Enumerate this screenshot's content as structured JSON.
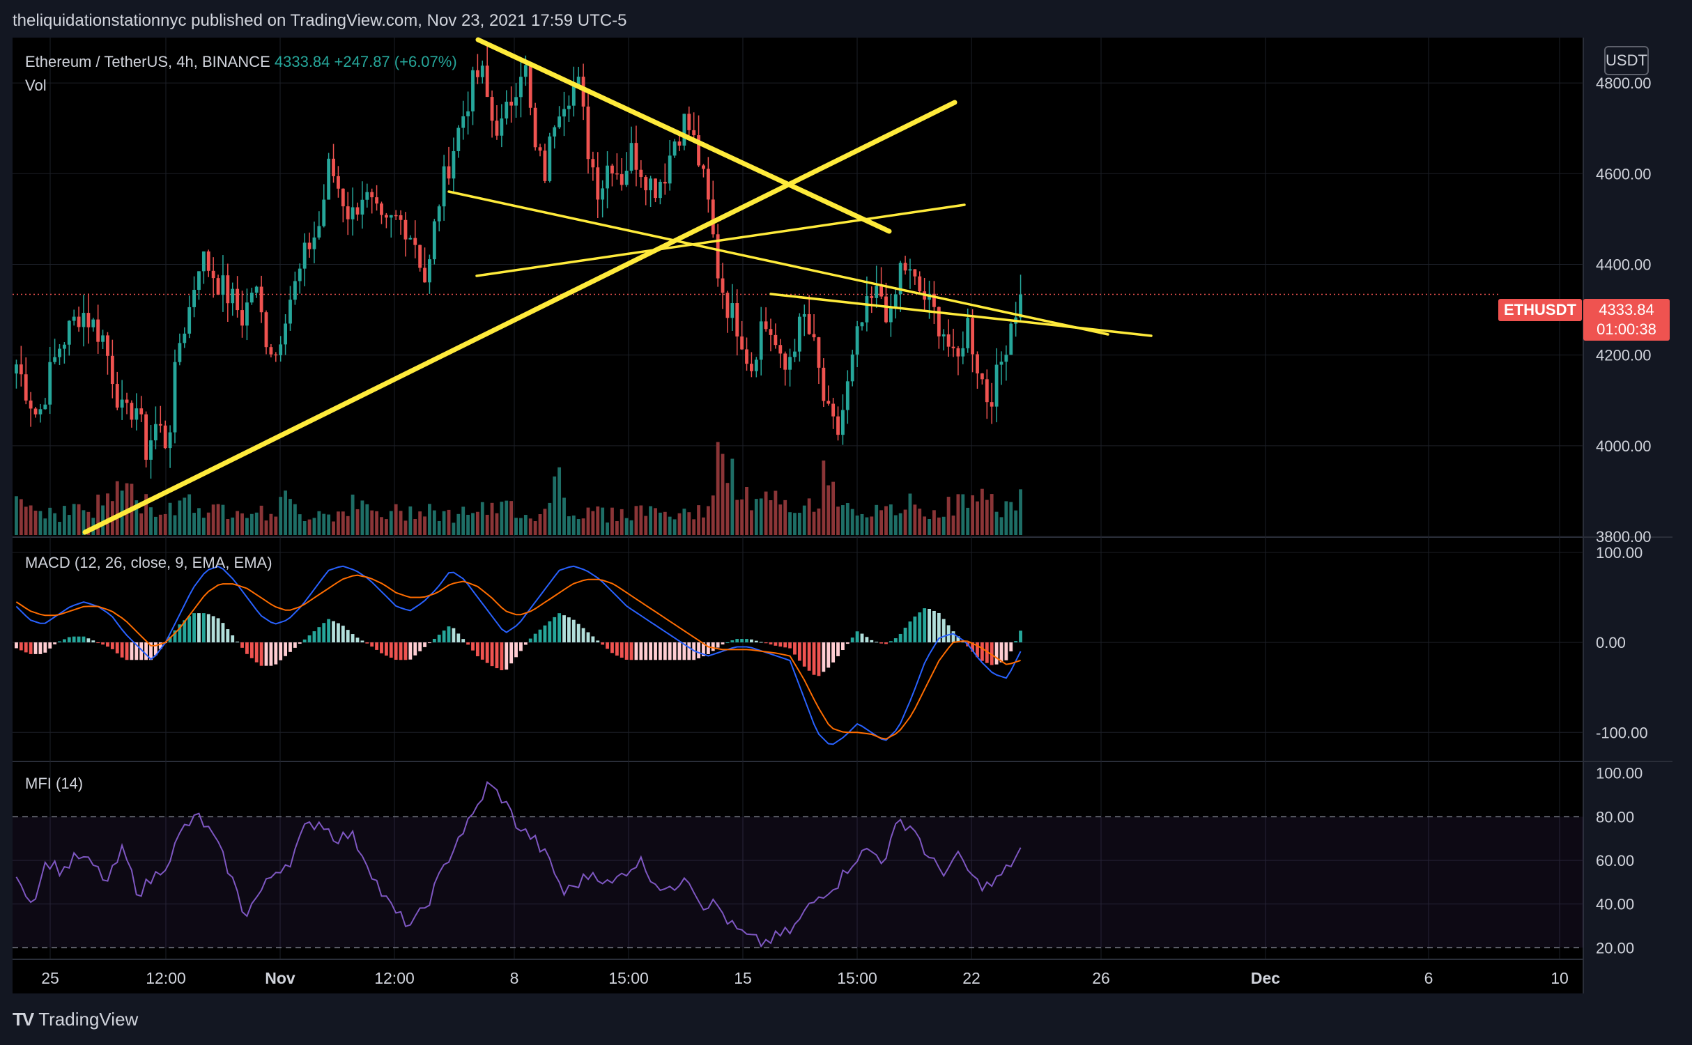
{
  "header": {
    "published": "theliquidationstationnyc published on TradingView.com, Nov 23, 2021 17:59 UTC-5"
  },
  "legend": {
    "symbol": "Ethereum / TetherUS, 4h, BINANCE",
    "price": "4333.84",
    "change": "+247.87 (+6.07%)",
    "vol": "Vol",
    "macd": "MACD (12, 26, close, 9, EMA, EMA)",
    "mfi": "MFI (14)"
  },
  "currency_button": "USDT",
  "last_price": {
    "ticker": "ETHUSDT",
    "price": "4333.84",
    "countdown": "01:00:38"
  },
  "colors": {
    "up": "#26a69a",
    "down": "#ef5350",
    "trendline": "#ffeb3b",
    "macd": "#2962ff",
    "signal": "#ff6d00",
    "mfi": "#7e57c2"
  },
  "brand": {
    "name": "TradingView"
  },
  "chart_data": [
    {
      "type": "candlestick",
      "title": "Ethereum / TetherUS, 4h, BINANCE",
      "ylim": [
        3800,
        4900
      ],
      "y_ticks": [
        "4800.00",
        "4600.00",
        "4400.00",
        "4200.00",
        "4000.00",
        "3800.00"
      ],
      "x_ticks": [
        "25",
        "12:00",
        "Nov",
        "12:00",
        "8",
        "15:00",
        "15",
        "15:00",
        "22",
        "26",
        "Dec",
        "6",
        "10"
      ],
      "close_path": [
        4180,
        4120,
        4060,
        4150,
        4220,
        4260,
        4300,
        4270,
        4240,
        4150,
        4050,
        4100,
        3990,
        4050,
        4000,
        4220,
        4300,
        4420,
        4390,
        4350,
        4320,
        4280,
        4360,
        4250,
        4200,
        4310,
        4360,
        4440,
        4480,
        4620,
        4560,
        4500,
        4560,
        4520,
        4470,
        4500,
        4490,
        4450,
        4350,
        4530,
        4620,
        4700,
        4780,
        4830,
        4720,
        4700,
        4780,
        4860,
        4650,
        4600,
        4750,
        4780,
        4800,
        4650,
        4560,
        4640,
        4590,
        4650,
        4610,
        4570,
        4600,
        4680,
        4720,
        4650,
        4540,
        4380,
        4300,
        4260,
        4170,
        4270,
        4250,
        4150,
        4230,
        4280,
        4200,
        4070,
        4020,
        4130,
        4250,
        4310,
        4340,
        4270,
        4410,
        4360,
        4330,
        4290,
        4250,
        4160,
        4280,
        4180,
        4100,
        4160,
        4270,
        4333
      ],
      "vol_path": [
        120,
        80,
        60,
        70,
        55,
        65,
        75,
        60,
        90,
        110,
        140,
        90,
        80,
        70,
        60,
        90,
        100,
        70,
        60,
        65,
        70,
        80,
        60,
        55,
        70,
        90,
        60,
        50,
        65,
        55,
        60,
        80,
        70,
        60,
        50,
        60,
        55,
        70,
        80,
        60,
        50,
        55,
        70,
        65,
        60,
        70,
        75,
        60,
        50,
        60,
        200,
        70,
        60,
        55,
        65,
        50,
        60,
        55,
        70,
        65,
        60,
        55,
        50,
        60,
        70,
        200,
        160,
        110,
        90,
        80,
        100,
        70,
        60,
        65,
        90,
        160,
        120,
        80,
        70,
        60,
        55,
        60,
        75,
        80,
        65,
        60,
        70,
        80,
        90,
        100,
        85,
        75,
        80,
        90
      ],
      "last_price": 4333.84
    },
    {
      "type": "line",
      "title": "MACD (12, 26, close, 9, EMA, EMA)",
      "ylim": [
        -130,
        110
      ],
      "y_ticks": [
        "100.00",
        "0.00",
        "-100.00"
      ],
      "series": [
        {
          "values": [
            40,
            25,
            20,
            30,
            40,
            45,
            40,
            30,
            10,
            -5,
            -20,
            0,
            30,
            60,
            80,
            85,
            70,
            50,
            30,
            20,
            25,
            40,
            60,
            80,
            85,
            80,
            70,
            55,
            40,
            35,
            45,
            60,
            80,
            70,
            50,
            30,
            10,
            20,
            40,
            60,
            80,
            85,
            80,
            70,
            55,
            40,
            30,
            20,
            10,
            0,
            -10,
            -15,
            -10,
            -5,
            -5,
            -10,
            -15,
            -20,
            -60,
            -100,
            -115,
            -105,
            -90,
            -100,
            -110,
            -95,
            -60,
            -20,
            5,
            10,
            0,
            -20,
            -35,
            -40,
            -10
          ]
        },
        {
          "values": [
            45,
            35,
            30,
            30,
            35,
            40,
            40,
            35,
            25,
            10,
            -5,
            0,
            15,
            35,
            55,
            65,
            65,
            60,
            50,
            40,
            35,
            40,
            50,
            60,
            70,
            75,
            72,
            65,
            55,
            50,
            50,
            55,
            65,
            68,
            62,
            50,
            35,
            30,
            35,
            45,
            55,
            65,
            70,
            70,
            65,
            55,
            45,
            35,
            25,
            15,
            5,
            -5,
            -8,
            -8,
            -8,
            -10,
            -12,
            -15,
            -40,
            -70,
            -95,
            -100,
            -100,
            -102,
            -108,
            -100,
            -80,
            -50,
            -20,
            0,
            2,
            -5,
            -15,
            -25,
            -20
          ]
        }
      ]
    },
    {
      "type": "line",
      "title": "MFI (14)",
      "ylim": [
        15,
        105
      ],
      "y_ticks": [
        "100.00",
        "80.00",
        "60.00",
        "40.00",
        "20.00"
      ],
      "series": [
        {
          "values": [
            55,
            40,
            60,
            55,
            62,
            58,
            50,
            65,
            45,
            52,
            60,
            75,
            80,
            70,
            55,
            35,
            45,
            55,
            60,
            75,
            78,
            70,
            72,
            60,
            45,
            35,
            30,
            40,
            55,
            70,
            80,
            95,
            88,
            75,
            70,
            60,
            45,
            50,
            55,
            48,
            55,
            60,
            50,
            45,
            55,
            40,
            40,
            30,
            25,
            22,
            25,
            28,
            38,
            45,
            50,
            60,
            65,
            60,
            78,
            75,
            60,
            55,
            62,
            50,
            48,
            55,
            65
          ]
        }
      ]
    }
  ]
}
